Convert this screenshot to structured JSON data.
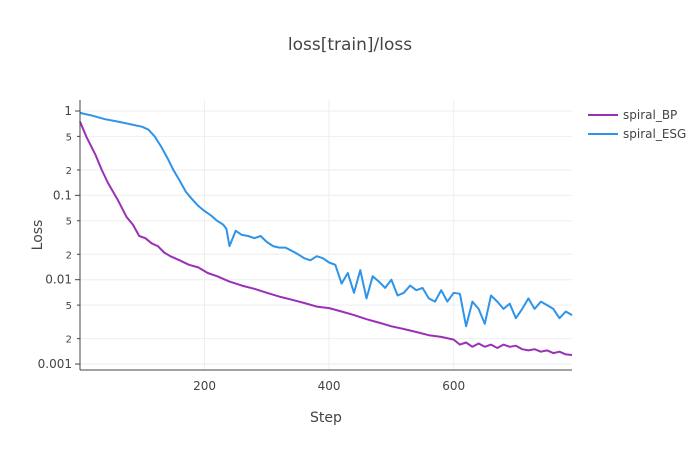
{
  "chart_data": {
    "type": "line",
    "title": "loss[train]/loss",
    "xlabel": "Step",
    "ylabel": "Loss",
    "xlim": [
      0,
      790
    ],
    "ylim": [
      0.00085,
      1.35
    ],
    "yscale": "log",
    "grid": true,
    "legend_position": "top-right",
    "x_ticks": [
      {
        "value": 200,
        "label": "200"
      },
      {
        "value": 400,
        "label": "400"
      },
      {
        "value": 600,
        "label": "600"
      }
    ],
    "y_major_ticks": [
      {
        "value": 1,
        "label": "1"
      },
      {
        "value": 0.1,
        "label": "0.1"
      },
      {
        "value": 0.01,
        "label": "0.01"
      },
      {
        "value": 0.001,
        "label": "0.001"
      }
    ],
    "y_minor_ticks": [
      {
        "value": 0.5,
        "label": "5"
      },
      {
        "value": 0.2,
        "label": "2"
      },
      {
        "value": 0.05,
        "label": "5"
      },
      {
        "value": 0.02,
        "label": "2"
      },
      {
        "value": 0.005,
        "label": "5"
      },
      {
        "value": 0.002,
        "label": "2"
      }
    ],
    "series": [
      {
        "name": "spiral_BP",
        "color": "#9a30b5",
        "points": [
          [
            0,
            0.75
          ],
          [
            10,
            0.5
          ],
          [
            25,
            0.3
          ],
          [
            35,
            0.2
          ],
          [
            45,
            0.14
          ],
          [
            60,
            0.09
          ],
          [
            75,
            0.055
          ],
          [
            85,
            0.045
          ],
          [
            95,
            0.033
          ],
          [
            105,
            0.031
          ],
          [
            115,
            0.027
          ],
          [
            125,
            0.025
          ],
          [
            135,
            0.021
          ],
          [
            145,
            0.019
          ],
          [
            160,
            0.017
          ],
          [
            175,
            0.015
          ],
          [
            190,
            0.014
          ],
          [
            205,
            0.012
          ],
          [
            220,
            0.011
          ],
          [
            240,
            0.0095
          ],
          [
            260,
            0.0085
          ],
          [
            280,
            0.0078
          ],
          [
            300,
            0.007
          ],
          [
            320,
            0.0063
          ],
          [
            340,
            0.0058
          ],
          [
            360,
            0.0053
          ],
          [
            380,
            0.0048
          ],
          [
            400,
            0.0046
          ],
          [
            420,
            0.0042
          ],
          [
            440,
            0.0038
          ],
          [
            460,
            0.0034
          ],
          [
            480,
            0.0031
          ],
          [
            500,
            0.0028
          ],
          [
            520,
            0.0026
          ],
          [
            540,
            0.0024
          ],
          [
            560,
            0.0022
          ],
          [
            580,
            0.0021
          ],
          [
            600,
            0.00195
          ],
          [
            610,
            0.0017
          ],
          [
            620,
            0.0018
          ],
          [
            630,
            0.0016
          ],
          [
            640,
            0.00175
          ],
          [
            650,
            0.0016
          ],
          [
            660,
            0.0017
          ],
          [
            670,
            0.00155
          ],
          [
            680,
            0.0017
          ],
          [
            690,
            0.0016
          ],
          [
            700,
            0.00165
          ],
          [
            710,
            0.0015
          ],
          [
            720,
            0.00145
          ],
          [
            730,
            0.0015
          ],
          [
            740,
            0.0014
          ],
          [
            750,
            0.00145
          ],
          [
            760,
            0.00135
          ],
          [
            770,
            0.0014
          ],
          [
            780,
            0.0013
          ],
          [
            790,
            0.00128
          ]
        ]
      },
      {
        "name": "spiral_ESG",
        "color": "#2f93e8",
        "points": [
          [
            0,
            0.95
          ],
          [
            20,
            0.88
          ],
          [
            40,
            0.8
          ],
          [
            60,
            0.75
          ],
          [
            80,
            0.7
          ],
          [
            100,
            0.65
          ],
          [
            110,
            0.6
          ],
          [
            120,
            0.5
          ],
          [
            130,
            0.38
          ],
          [
            140,
            0.28
          ],
          [
            150,
            0.2
          ],
          [
            160,
            0.15
          ],
          [
            170,
            0.11
          ],
          [
            180,
            0.09
          ],
          [
            190,
            0.075
          ],
          [
            200,
            0.065
          ],
          [
            210,
            0.058
          ],
          [
            220,
            0.05
          ],
          [
            230,
            0.045
          ],
          [
            235,
            0.04
          ],
          [
            240,
            0.025
          ],
          [
            250,
            0.038
          ],
          [
            260,
            0.034
          ],
          [
            270,
            0.033
          ],
          [
            280,
            0.031
          ],
          [
            290,
            0.033
          ],
          [
            300,
            0.028
          ],
          [
            310,
            0.025
          ],
          [
            320,
            0.024
          ],
          [
            330,
            0.024
          ],
          [
            340,
            0.022
          ],
          [
            350,
            0.02
          ],
          [
            360,
            0.018
          ],
          [
            370,
            0.017
          ],
          [
            380,
            0.019
          ],
          [
            390,
            0.018
          ],
          [
            400,
            0.016
          ],
          [
            410,
            0.015
          ],
          [
            420,
            0.009
          ],
          [
            430,
            0.012
          ],
          [
            440,
            0.007
          ],
          [
            450,
            0.013
          ],
          [
            460,
            0.006
          ],
          [
            470,
            0.011
          ],
          [
            480,
            0.0095
          ],
          [
            490,
            0.008
          ],
          [
            500,
            0.01
          ],
          [
            510,
            0.0065
          ],
          [
            520,
            0.007
          ],
          [
            530,
            0.0085
          ],
          [
            540,
            0.0075
          ],
          [
            550,
            0.008
          ],
          [
            560,
            0.006
          ],
          [
            570,
            0.0055
          ],
          [
            580,
            0.0075
          ],
          [
            590,
            0.0055
          ],
          [
            600,
            0.007
          ],
          [
            610,
            0.0068
          ],
          [
            620,
            0.0028
          ],
          [
            630,
            0.0055
          ],
          [
            640,
            0.0045
          ],
          [
            650,
            0.003
          ],
          [
            660,
            0.0065
          ],
          [
            670,
            0.0055
          ],
          [
            680,
            0.0045
          ],
          [
            690,
            0.0052
          ],
          [
            700,
            0.0035
          ],
          [
            710,
            0.0045
          ],
          [
            720,
            0.006
          ],
          [
            730,
            0.0045
          ],
          [
            740,
            0.0055
          ],
          [
            750,
            0.005
          ],
          [
            760,
            0.0045
          ],
          [
            770,
            0.0035
          ],
          [
            780,
            0.0042
          ],
          [
            790,
            0.0038
          ]
        ]
      }
    ]
  }
}
